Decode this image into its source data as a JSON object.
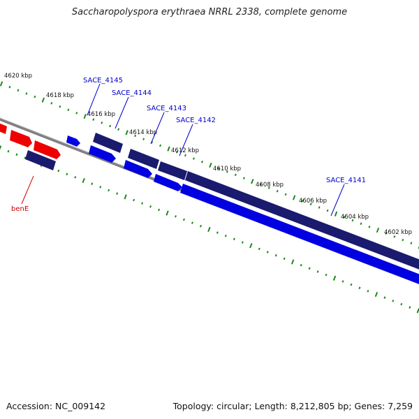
{
  "title": "Saccharopolyspora erythraea NRRL 2338, complete genome",
  "footer": {
    "accession": "Accession: NC_009142",
    "summary": "Topology: circular; Length: 8,212,805 bp; Genes: 7,259"
  },
  "scale_labels": [
    "4620 kbp",
    "4618 kbp",
    "4616 kbp",
    "4614 kbp",
    "4612 kbp",
    "4610 kbp",
    "4608 kbp",
    "4606 kbp",
    "4604 kbp",
    "4602 kbp"
  ],
  "gene_labels": [
    {
      "name": "SACE_4145",
      "color": "#0000cc"
    },
    {
      "name": "SACE_4144",
      "color": "#0000cc"
    },
    {
      "name": "SACE_4143",
      "color": "#0000cc"
    },
    {
      "name": "SACE_4142",
      "color": "#0000cc"
    },
    {
      "name": "SACE_4141",
      "color": "#0000cc"
    },
    {
      "name": "benE",
      "color": "#cc0000"
    }
  ],
  "colors": {
    "forward_gene": "#0000e0",
    "forward_gene_light": "#4d5cff",
    "reverse_gene": "#1a1a6e",
    "red_gene": "#ee0000",
    "backbone": "#808080",
    "tick": "#1a8a1a",
    "scale_text": "#111111"
  }
}
